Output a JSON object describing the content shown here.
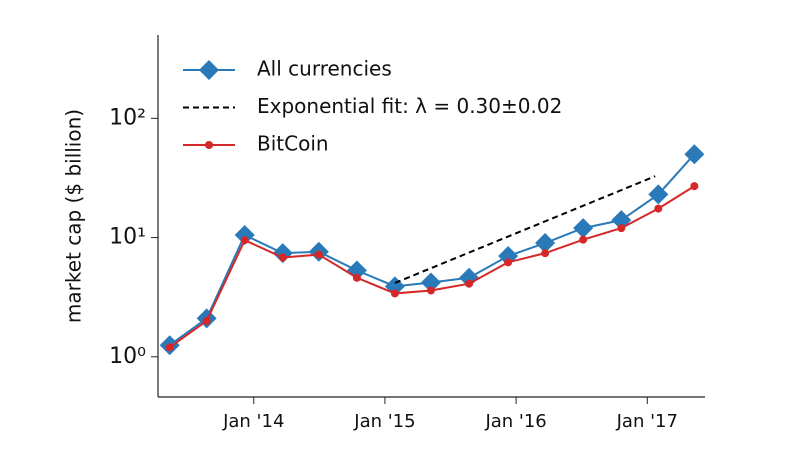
{
  "chart_data": {
    "type": "line",
    "y_label": "market cap ($ billion)",
    "log_y": true,
    "grid": false,
    "legend": "upper left",
    "xlim": [
      2013.27,
      2017.44
    ],
    "xticks": [
      {
        "value": 2014,
        "label": "Jan '14"
      },
      {
        "value": 2015,
        "label": "Jan '15"
      },
      {
        "value": 2016,
        "label": "Jan '16"
      },
      {
        "value": 2017,
        "label": "Jan '17"
      }
    ],
    "ylim": [
      0.46,
      500
    ],
    "yticks": [
      {
        "value": 1,
        "label": "10⁰"
      },
      {
        "value": 10,
        "label": "10¹"
      },
      {
        "value": 100,
        "label": "10²"
      }
    ],
    "series": [
      {
        "name": "All currencies",
        "color": "#2a7ab9",
        "marker": "diamond",
        "dash": false,
        "x": [
          2013.359,
          2013.641,
          2013.931,
          2014.221,
          2014.496,
          2014.786,
          2015.076,
          2015.351,
          2015.641,
          2015.939,
          2016.221,
          2016.511,
          2016.802,
          2017.084,
          2017.359
        ],
        "values": [
          1.25,
          2.1,
          10.5,
          7.4,
          7.6,
          5.3,
          3.9,
          4.2,
          4.6,
          7.0,
          9.0,
          12,
          14,
          23,
          50
        ]
      },
      {
        "name": "Exponential fit: λ = 0.30±0.02",
        "color": "#000000",
        "marker": "none",
        "dash": true,
        "x": [
          2015.076,
          2017.06
        ],
        "values": [
          4.16,
          32.7
        ]
      },
      {
        "name": "BitCoin",
        "color": "#d62728",
        "marker": "circle",
        "dash": false,
        "x": [
          2013.359,
          2013.641,
          2013.931,
          2014.221,
          2014.496,
          2014.786,
          2015.076,
          2015.351,
          2015.641,
          2015.939,
          2016.221,
          2016.511,
          2016.802,
          2017.084,
          2017.359
        ],
        "values": [
          1.2,
          2.0,
          9.5,
          6.8,
          7.2,
          4.6,
          3.4,
          3.6,
          4.1,
          6.2,
          7.4,
          9.6,
          12,
          17.5,
          27
        ]
      }
    ]
  }
}
